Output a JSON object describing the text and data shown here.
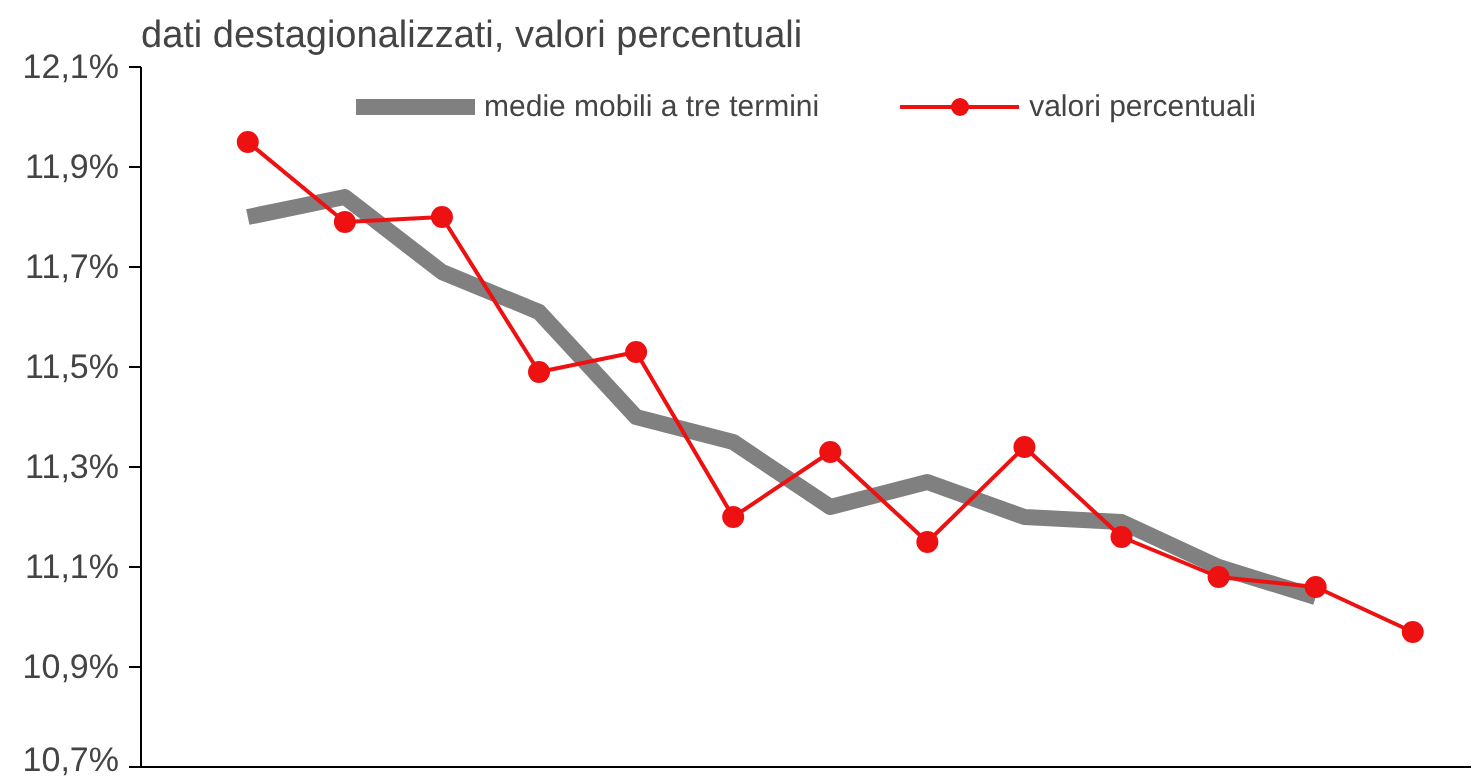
{
  "chart_data": {
    "type": "line",
    "title": "dati destagionalizzati, valori percentuali",
    "categories": [
      null,
      null,
      null,
      null,
      null,
      null,
      null,
      null,
      null,
      null,
      null,
      null,
      null
    ],
    "series": [
      {
        "name": "medie mobili a tre termini",
        "color": "#808080",
        "marker": "none",
        "values": [
          11.8,
          11.84,
          11.69,
          11.61,
          11.4,
          11.35,
          11.22,
          11.27,
          11.2,
          11.19,
          11.1,
          11.04,
          null
        ]
      },
      {
        "name": "valori percentuali",
        "color": "#ee1111",
        "marker": "circle",
        "values": [
          11.95,
          11.79,
          11.8,
          11.49,
          11.53,
          11.2,
          11.33,
          11.15,
          11.34,
          11.16,
          11.08,
          11.06,
          10.97
        ]
      }
    ],
    "ylim": [
      10.7,
      12.1
    ],
    "yticks": [
      {
        "value": 10.7,
        "label": "10,7%"
      },
      {
        "value": 10.9,
        "label": "10,9%"
      },
      {
        "value": 11.1,
        "label": "11,1%"
      },
      {
        "value": 11.3,
        "label": "11,3%"
      },
      {
        "value": 11.5,
        "label": "11,5%"
      },
      {
        "value": 11.7,
        "label": "11,7%"
      },
      {
        "value": 11.9,
        "label": "11,9%"
      },
      {
        "value": 12.1,
        "label": "12,1%"
      }
    ],
    "tick_labels": "y",
    "grid": false,
    "legend": "top",
    "line_style": "solid"
  }
}
